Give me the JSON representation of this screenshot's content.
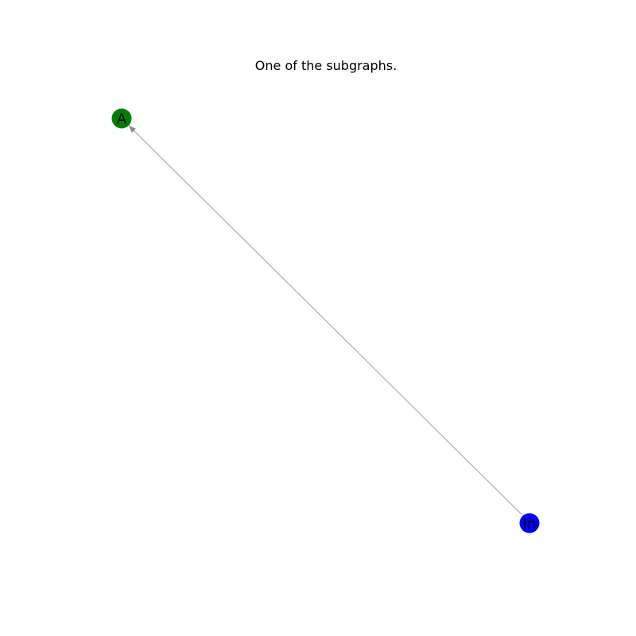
{
  "title": "One of the subgraphs.",
  "graph": {
    "nodes": [
      {
        "id": "A",
        "label": "A",
        "color": "#008000"
      },
      {
        "id": "In",
        "label": "In",
        "color": "#0000ff"
      }
    ],
    "edges": [
      {
        "from": "In",
        "to": "A",
        "directed": true,
        "color": "#b3b3b3"
      }
    ]
  }
}
